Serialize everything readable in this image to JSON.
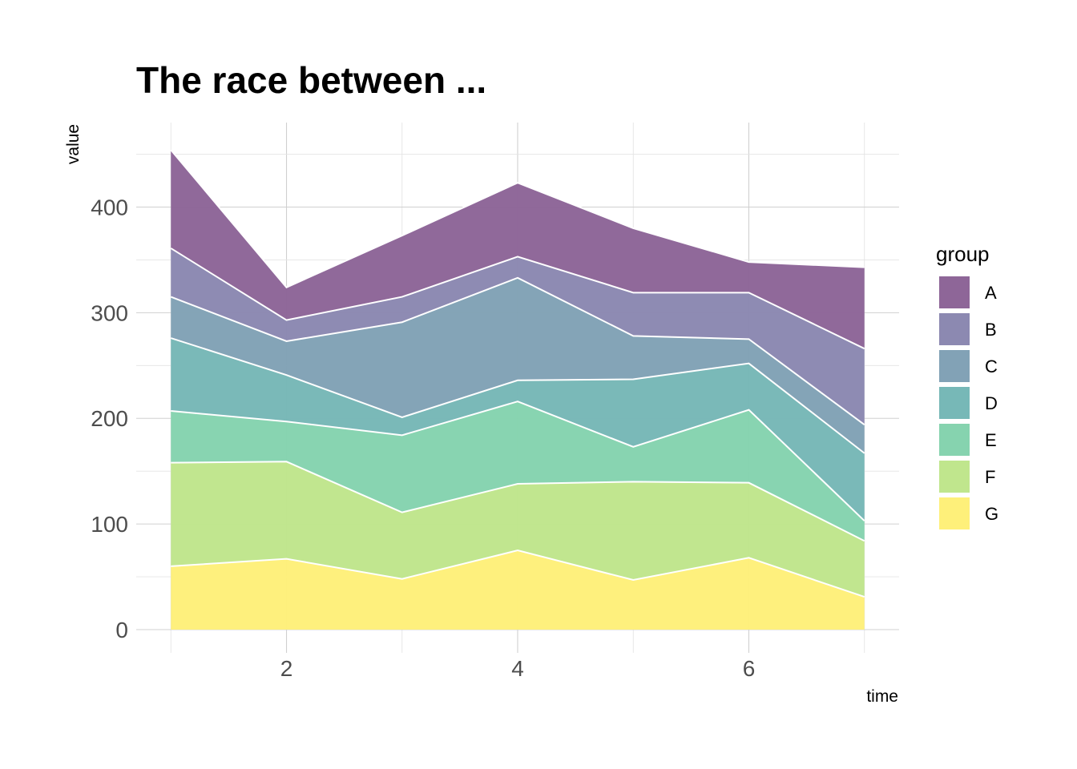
{
  "chart_data": {
    "type": "area",
    "stacked": true,
    "title": "The race between ...",
    "xlabel": "time",
    "ylabel": "value",
    "x": [
      1,
      2,
      3,
      4,
      5,
      6,
      7
    ],
    "xlim": [
      0.7,
      7.3
    ],
    "ylim": [
      -22,
      480
    ],
    "x_ticks": [
      2,
      4,
      6
    ],
    "y_ticks": [
      0,
      100,
      200,
      300,
      400
    ],
    "grid": true,
    "legend": {
      "title": "group",
      "position": "right"
    },
    "series": [
      {
        "name": "A",
        "color": "#8E6698",
        "values": [
          93,
          31,
          58,
          70,
          61,
          29,
          77
        ]
      },
      {
        "name": "B",
        "color": "#8C89B1",
        "values": [
          46,
          20,
          24,
          20,
          41,
          44,
          72
        ]
      },
      {
        "name": "C",
        "color": "#82A2B6",
        "values": [
          39,
          32,
          90,
          97,
          41,
          23,
          27
        ]
      },
      {
        "name": "D",
        "color": "#77B8B7",
        "values": [
          69,
          44,
          17,
          20,
          64,
          44,
          64
        ]
      },
      {
        "name": "E",
        "color": "#86D3AF",
        "values": [
          49,
          38,
          73,
          78,
          33,
          69,
          19
        ]
      },
      {
        "name": "F",
        "color": "#C0E68D",
        "values": [
          98,
          92,
          63,
          63,
          93,
          71,
          53
        ]
      },
      {
        "name": "G",
        "color": "#FEF07A",
        "values": [
          60,
          67,
          48,
          75,
          47,
          68,
          31
        ]
      }
    ]
  }
}
